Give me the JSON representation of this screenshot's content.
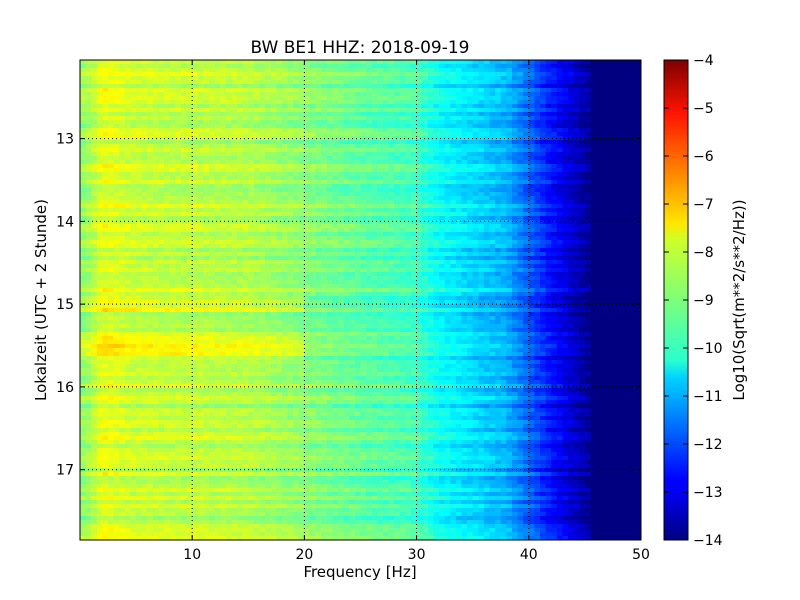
{
  "chart_data": {
    "type": "heatmap",
    "title": "BW BE1 HHZ: 2018-09-19",
    "xlabel": "Frequency [Hz]",
    "ylabel": "Lokalzeit (UTC + 2 Stunde)",
    "xlim": [
      0,
      50
    ],
    "ylim": [
      12.05,
      17.85
    ],
    "y_inverted": true,
    "x_ticks": [
      10,
      20,
      30,
      40,
      50
    ],
    "x_tick_labels": [
      "10",
      "20",
      "30",
      "40",
      "50"
    ],
    "y_ticks": [
      13,
      14,
      15,
      16,
      17
    ],
    "y_tick_labels": [
      "13",
      "14",
      "15",
      "16",
      "17"
    ],
    "grid": true,
    "colormap": "jet",
    "colorbar": {
      "label": "Log10(Sqrt(m**2/s**2/Hz))",
      "range": [
        -14,
        -4
      ],
      "ticks": [
        -4,
        -5,
        -6,
        -7,
        -8,
        -9,
        -10,
        -11,
        -12,
        -13,
        -14
      ],
      "tick_labels": [
        "−4",
        "−5",
        "−6",
        "−7",
        "−8",
        "−9",
        "−10",
        "−11",
        "−12",
        "−13",
        "−14"
      ]
    },
    "frequency_profile": {
      "frequency_hz": [
        0.5,
        2,
        5,
        10,
        15,
        20,
        25,
        30,
        32,
        35,
        38,
        40,
        42,
        44,
        46,
        48,
        50
      ],
      "log10_amplitude": [
        -8.8,
        -8.0,
        -8.3,
        -8.4,
        -8.5,
        -8.9,
        -9.3,
        -9.6,
        -10.2,
        -10.6,
        -11.0,
        -11.8,
        -12.6,
        -13.3,
        -14.0,
        -14.0,
        -14.0
      ]
    },
    "notable_rows": [
      {
        "time": 15.0,
        "level": "high"
      },
      {
        "time": 15.45,
        "level": "high"
      },
      {
        "time": 15.6,
        "level": "high"
      }
    ]
  }
}
